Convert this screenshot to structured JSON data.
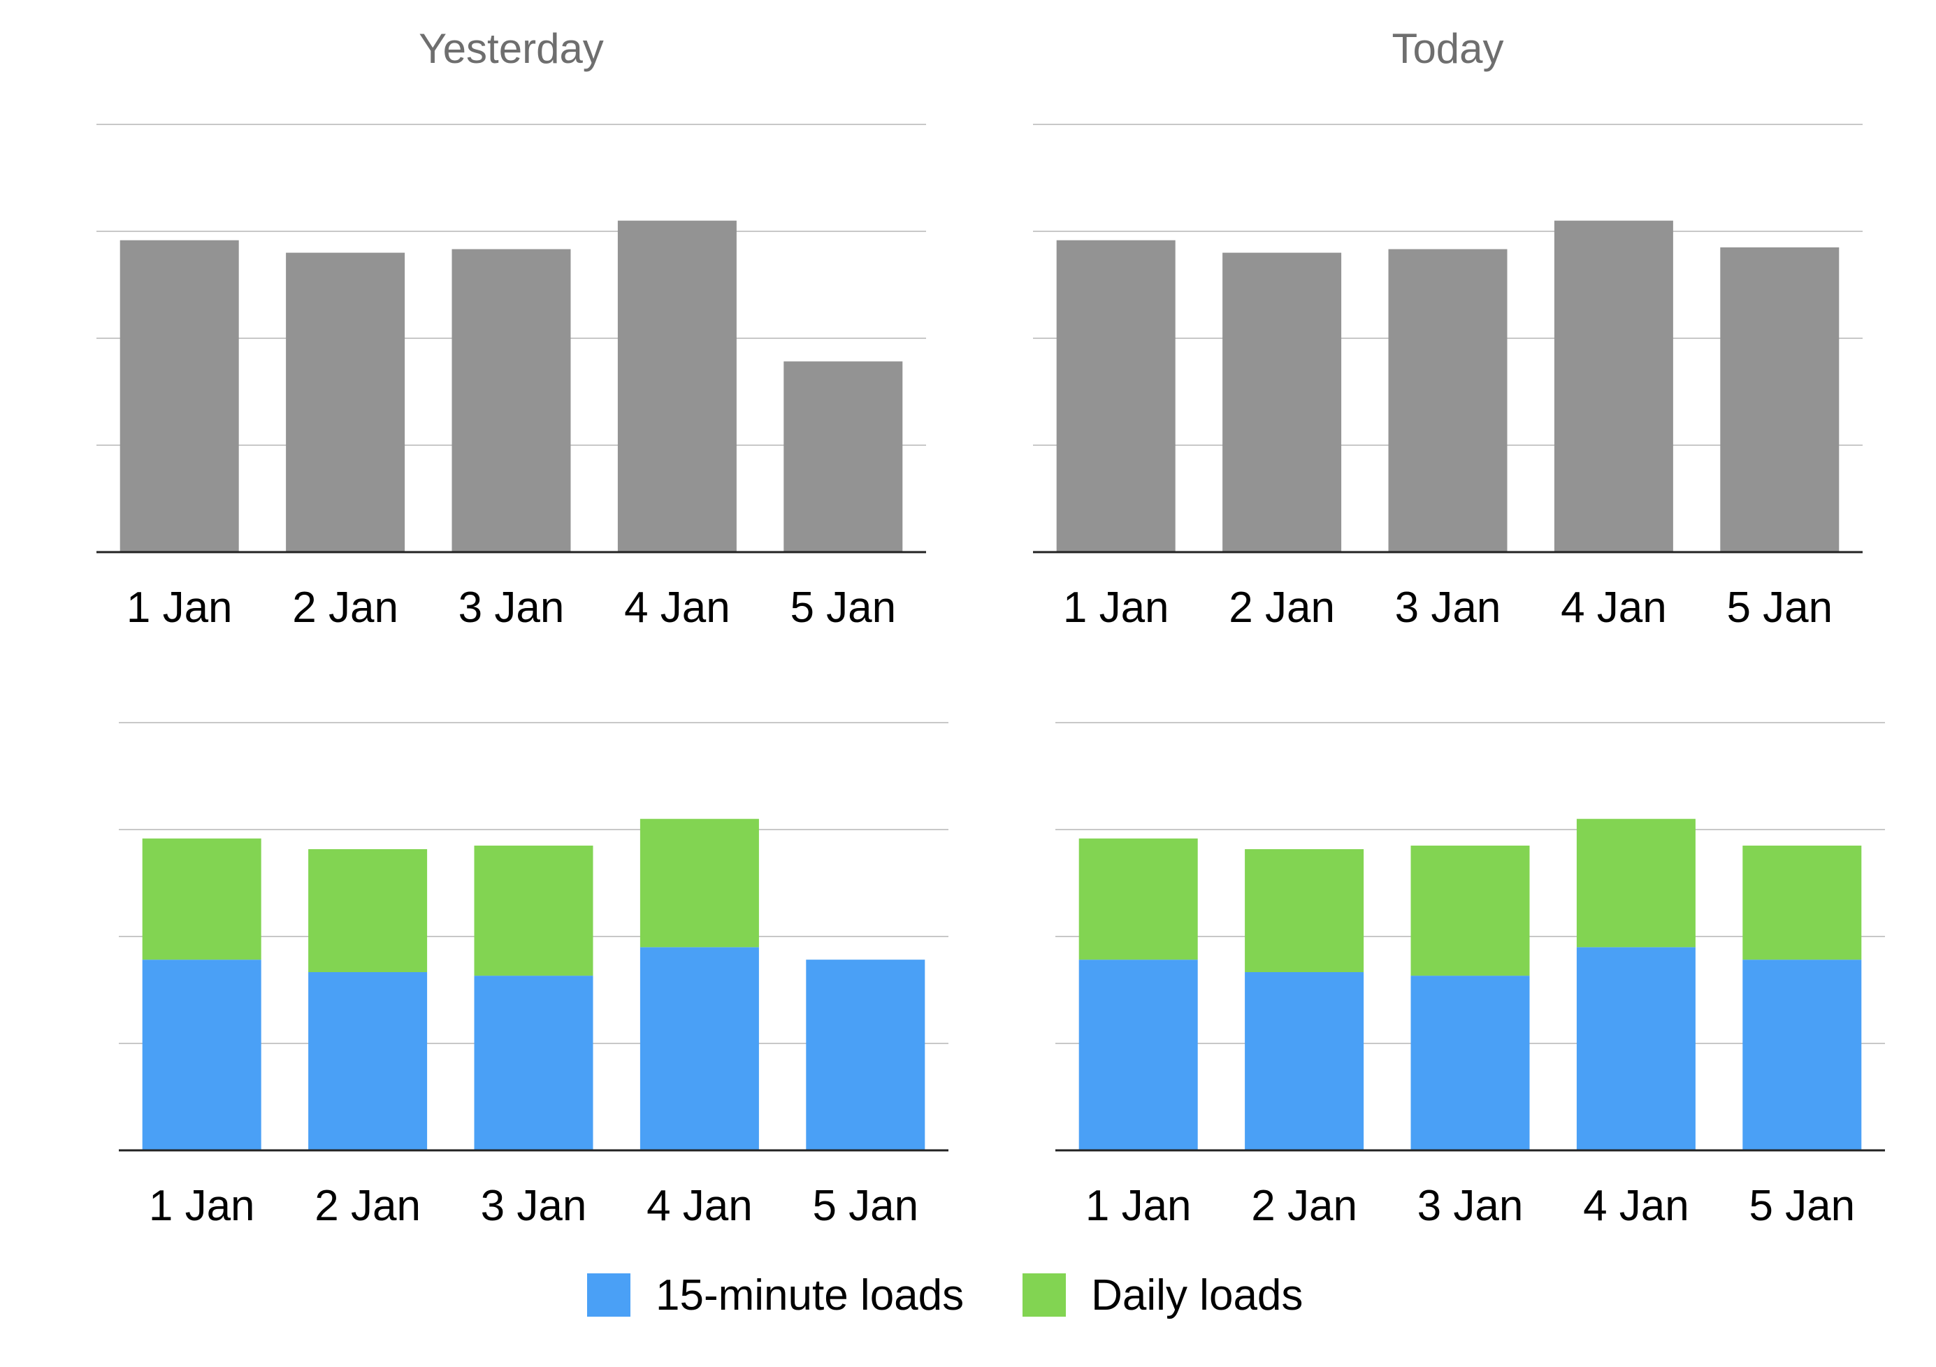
{
  "chart_data": [
    {
      "type": "bar",
      "title": "Yesterday",
      "categories": [
        "1 Jan",
        "2 Jan",
        "3 Jan",
        "4 Jan",
        "5 Jan"
      ],
      "series": [
        {
          "values": [
            8.75,
            8.4,
            8.5,
            9.3,
            5.35
          ]
        }
      ],
      "ylim": [
        0,
        12
      ],
      "grid": true,
      "colors": [
        "#939393"
      ]
    },
    {
      "type": "bar",
      "title": "Today",
      "categories": [
        "1 Jan",
        "2 Jan",
        "3 Jan",
        "4 Jan",
        "5 Jan"
      ],
      "series": [
        {
          "values": [
            8.75,
            8.4,
            8.5,
            9.3,
            8.55
          ]
        }
      ],
      "ylim": [
        0,
        12
      ],
      "grid": true,
      "colors": [
        "#939393"
      ]
    },
    {
      "type": "bar",
      "stacked": true,
      "title": "",
      "categories": [
        "1 Jan",
        "2 Jan",
        "3 Jan",
        "4 Jan",
        "5 Jan"
      ],
      "series": [
        {
          "name": "15-minute loads",
          "values": [
            5.35,
            5.0,
            4.9,
            5.7,
            5.35
          ]
        },
        {
          "name": "Daily loads",
          "values": [
            3.4,
            3.45,
            3.65,
            3.6,
            0
          ]
        }
      ],
      "ylim": [
        0,
        12
      ],
      "grid": true,
      "colors": [
        "#4aa0f6",
        "#82d452"
      ]
    },
    {
      "type": "bar",
      "stacked": true,
      "title": "",
      "categories": [
        "1 Jan",
        "2 Jan",
        "3 Jan",
        "4 Jan",
        "5 Jan"
      ],
      "series": [
        {
          "name": "15-minute loads",
          "values": [
            5.35,
            5.0,
            4.9,
            5.7,
            5.35
          ]
        },
        {
          "name": "Daily loads",
          "values": [
            3.4,
            3.45,
            3.65,
            3.6,
            3.2
          ]
        }
      ],
      "ylim": [
        0,
        12
      ],
      "grid": true,
      "colors": [
        "#4aa0f6",
        "#82d452"
      ]
    }
  ],
  "legend": {
    "placement": "bottom-center",
    "items": [
      {
        "label": "15-minute loads",
        "color": "#4aa0f6"
      },
      {
        "label": "Daily loads",
        "color": "#82d452"
      }
    ]
  },
  "style": {
    "title_color": "#6e6e6e",
    "grid_color": "#c8c8c8",
    "axis_color": "#222222"
  }
}
